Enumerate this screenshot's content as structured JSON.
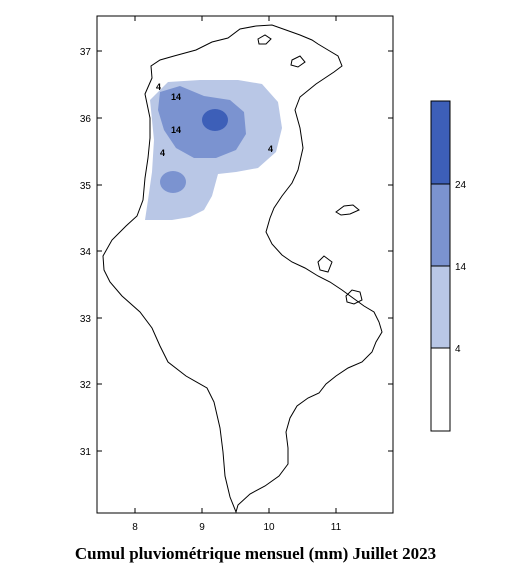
{
  "caption": "Cumul pluviométrique mensuel (mm)  Juillet 2023",
  "map": {
    "x_ticks": [
      "8",
      "9",
      "10",
      "11"
    ],
    "y_ticks": [
      "37",
      "36",
      "35",
      "34",
      "33",
      "32",
      "31"
    ],
    "contour_labels": [
      "14",
      "14",
      "4",
      "4",
      "4"
    ]
  },
  "legend": {
    "labels": [
      "24",
      "14",
      "4"
    ],
    "colors": [
      "#3d5fb8",
      "#7b93d0",
      "#b9c7e6",
      "#ffffff"
    ]
  },
  "chart_data": {
    "type": "heatmap",
    "title": "Cumul pluviométrique mensuel (mm)  Juillet 2023",
    "levels_mm": [
      4,
      14,
      24
    ],
    "x_ticks": [
      8,
      9,
      10,
      11
    ],
    "y_ticks": [
      37,
      36,
      35,
      34,
      33,
      32,
      31
    ],
    "xlim": [
      7.4,
      11.85
    ],
    "ylim": [
      30.0,
      37.6
    ],
    "grid": false,
    "legend_placement": "right"
  }
}
